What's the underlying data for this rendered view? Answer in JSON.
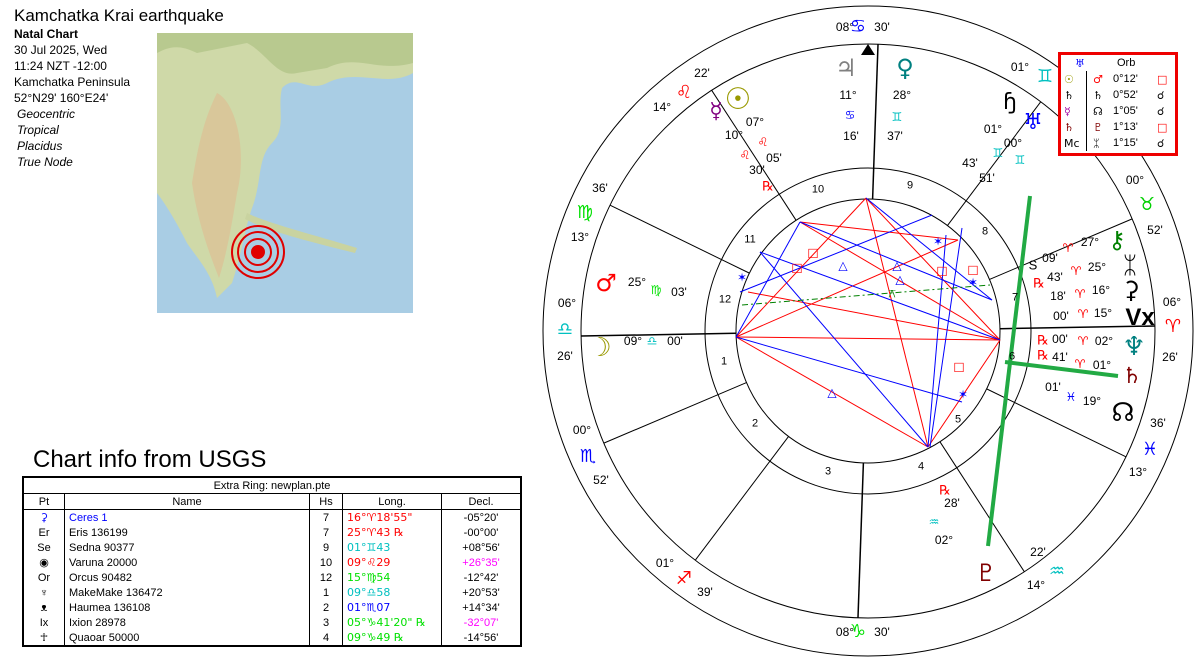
{
  "header": {
    "title": "Kamchatka Krai earthquake",
    "subtitle": "Natal Chart",
    "date": "30 Jul 2025, Wed",
    "time": "11:24  NZT -12:00",
    "place": "Kamchatka Peninsula",
    "coords": "52°N29' 160°E24'",
    "options": [
      "Geocentric",
      "Tropical",
      "Placidus",
      "True Node"
    ]
  },
  "map": {
    "icon": "earthquake-epicenter-icon",
    "marker_color": "#e00000"
  },
  "caption": "Chart info from USGS",
  "extra_ring": {
    "title": "Extra Ring: newplan.pte",
    "columns": [
      "Pt",
      "Name",
      "Hs",
      "Long.",
      "Decl."
    ],
    "rows": [
      {
        "pt": "⚳",
        "name": "Ceres 1",
        "hs": "7",
        "long": "16°♈18'55\"",
        "decl": "-05°20'",
        "name_color": "#0000ff",
        "pt_color": "#0000ff",
        "long_color": "#ff0000",
        "decl_color": "#000000"
      },
      {
        "pt": "Er",
        "name": "Eris 136199",
        "hs": "7",
        "long": "25°♈43 ℞",
        "decl": "-00°00'",
        "name_color": "#000000",
        "pt_color": "#000000",
        "long_color": "#ff0000",
        "decl_color": "#000000"
      },
      {
        "pt": "Se",
        "name": "Sedna 90377",
        "hs": "9",
        "long": "01°♊43",
        "decl": "+08°56'",
        "name_color": "#000000",
        "pt_color": "#000000",
        "long_color": "#00c0c0",
        "decl_color": "#000000"
      },
      {
        "pt": "◉",
        "name": "Varuna 20000",
        "hs": "10",
        "long": "09°♌29",
        "decl": "+26°35'",
        "name_color": "#000000",
        "pt_color": "#000000",
        "long_color": "#ff0000",
        "decl_color": "#ff00ff"
      },
      {
        "pt": "Or",
        "name": "Orcus 90482",
        "hs": "12",
        "long": "15°♍54",
        "decl": "-12°42'",
        "name_color": "#000000",
        "pt_color": "#000000",
        "long_color": "#00e000",
        "decl_color": "#000000"
      },
      {
        "pt": "♆",
        "name": "MakeMake 136472",
        "hs": "1",
        "long": "09°♎58",
        "decl": "+20°53'",
        "name_color": "#000000",
        "pt_color": "#000000",
        "long_color": "#00c0c0",
        "decl_color": "#000000"
      },
      {
        "pt": "ᴥ",
        "name": "Haumea 136108",
        "hs": "2",
        "long": "01°♏07",
        "decl": "+14°34'",
        "name_color": "#000000",
        "pt_color": "#000000",
        "long_color": "#0000ff",
        "decl_color": "#000000"
      },
      {
        "pt": "Ix",
        "name": "Ixion 28978",
        "hs": "3",
        "long": "05°♑41'20\" ℞",
        "decl": "-32°07'",
        "name_color": "#000000",
        "pt_color": "#000000",
        "long_color": "#00e000",
        "decl_color": "#ff00ff"
      },
      {
        "pt": "☥",
        "name": "Quaoar 50000",
        "hs": "4",
        "long": "09°♑49 ℞",
        "decl": "-14°56'",
        "name_color": "#000000",
        "pt_color": "#000000",
        "long_color": "#00e000",
        "decl_color": "#000000"
      }
    ]
  },
  "orb_box": {
    "header_glyph": "♅",
    "header_label": "Orb",
    "rows": [
      {
        "a": "☉",
        "b": "♂",
        "orb": "0°12'",
        "asp": "□",
        "a_color": "#999900",
        "b_color": "#ff0000",
        "asp_color": "#ff0000"
      },
      {
        "a": "♄",
        "b": "♄",
        "orb": "0°52'",
        "asp": "☌",
        "a_color": "#000000",
        "b_color": "#000000",
        "asp_color": "#000000"
      },
      {
        "a": "☿",
        "b": "☊",
        "orb": "1°05'",
        "asp": "☌",
        "a_color": "#a000a0",
        "b_color": "#000000",
        "asp_color": "#000000"
      },
      {
        "a": "♄",
        "b": "♇",
        "orb": "1°13'",
        "asp": "□",
        "a_color": "#800000",
        "b_color": "#800000",
        "asp_color": "#ff0000"
      },
      {
        "a": "Mc",
        "b": "ᛯ",
        "orb": "1°15'",
        "asp": "☌",
        "a_color": "#000000",
        "b_color": "#000000",
        "asp_color": "#000000"
      }
    ]
  },
  "wheel": {
    "house_numbers": [
      "1",
      "2",
      "3",
      "4",
      "5",
      "6",
      "7",
      "8",
      "9",
      "10",
      "11",
      "12"
    ],
    "cusps": [
      {
        "deg": "06°",
        "sign": "♎",
        "min": "26'",
        "color": "#00c0c0"
      },
      {
        "deg": "00°",
        "sign": "♏",
        "min": "52'",
        "color": "#0000ff"
      },
      {
        "deg": "01°",
        "sign": "♐",
        "min": "39'",
        "color": "#ff0000"
      },
      {
        "deg": "08°",
        "sign": "♑",
        "min": "30'",
        "color": "#00e000"
      },
      {
        "deg": "14°",
        "sign": "♒",
        "min": "22'",
        "color": "#00c0c0"
      },
      {
        "deg": "13°",
        "sign": "♓",
        "min": "36'",
        "color": "#0000ff"
      },
      {
        "deg": "06°",
        "sign": "♈",
        "min": "26'",
        "color": "#ff0000"
      },
      {
        "deg": "00°",
        "sign": "♉",
        "min": "52'",
        "color": "#00d000"
      },
      {
        "deg": "01°",
        "sign": "♊",
        "color": "#00c0c0"
      },
      {
        "deg": "08°",
        "sign": "♋",
        "min": "30'",
        "color": "#0000ff"
      },
      {
        "deg": "14°",
        "sign": "♌",
        "min": "22'",
        "color": "#ff0000"
      },
      {
        "deg": "13°",
        "sign": "♍",
        "min": "36'",
        "color": "#00e000"
      }
    ],
    "planets": [
      {
        "name": "Jupiter",
        "glyph": "♃",
        "deg": "11°",
        "sign": "♋",
        "min": "16'",
        "color": "#808080"
      },
      {
        "name": "Venus",
        "glyph": "♀",
        "deg": "28°",
        "sign": "♊",
        "min": "37'",
        "color": "#008080"
      },
      {
        "name": "Sun",
        "glyph": "☉",
        "deg": "07°",
        "sign": "♌",
        "min": "05'",
        "color": "#999900"
      },
      {
        "name": "Mercury",
        "glyph": "☿",
        "deg": "10°",
        "sign": "♌",
        "min": "30'",
        "retro": "℞",
        "color": "#800080"
      },
      {
        "name": "Mars",
        "glyph": "♂",
        "deg": "25°",
        "sign": "♍",
        "min": "03'",
        "color": "#ff0000"
      },
      {
        "name": "Moon",
        "glyph": "☽",
        "deg": "09°",
        "sign": "♎",
        "min": "00'",
        "color": "#999900"
      },
      {
        "name": "Pluto",
        "glyph": "♇",
        "deg": "02°",
        "sign": "♒",
        "min": "28'",
        "retro": "℞",
        "color": "#800000"
      },
      {
        "name": "North Node",
        "glyph": "☊",
        "deg": "19°",
        "sign": "♓",
        "min": "01'",
        "color": "#000000"
      },
      {
        "name": "Saturn",
        "glyph": "♄",
        "deg": "01°",
        "sign": "♈",
        "min": "41'",
        "retro": "℞",
        "color": "#800000"
      },
      {
        "name": "Neptune",
        "glyph": "♆",
        "deg": "02°",
        "sign": "♈",
        "min": "00'",
        "retro": "℞",
        "color": "#008080"
      },
      {
        "name": "Vertex",
        "glyph": "Vx",
        "deg": "15°",
        "sign": "♈",
        "min": "00'",
        "color": "#000000"
      },
      {
        "name": "Ceres",
        "glyph": "⚳",
        "deg": "16°",
        "sign": "♈",
        "min": "18'",
        "color": "#000000"
      },
      {
        "name": "Eris",
        "glyph": "ᛯ",
        "deg": "25°",
        "sign": "♈",
        "min": "43'",
        "retro": "℞",
        "color": "#000000"
      },
      {
        "name": "Chiron",
        "glyph": "⚷",
        "deg": "27°",
        "sign": "♈",
        "min": "09'",
        "retro": "S",
        "color": "#008000"
      },
      {
        "name": "Sedna",
        "glyph": "ɧ",
        "deg": "01°",
        "sign": "♊",
        "min": "43'",
        "color": "#000000"
      },
      {
        "name": "Uranus",
        "glyph": "♅",
        "deg": "00°",
        "sign": "♊",
        "min": "51'",
        "color": "#0000ff"
      }
    ],
    "colors": {
      "fire": "#ff0000",
      "earth": "#00e000",
      "air": "#00c0c0",
      "water": "#0000ff",
      "aspect_hard": "#ff0000",
      "aspect_soft": "#0000ff",
      "highlight": "#22aa44"
    }
  }
}
